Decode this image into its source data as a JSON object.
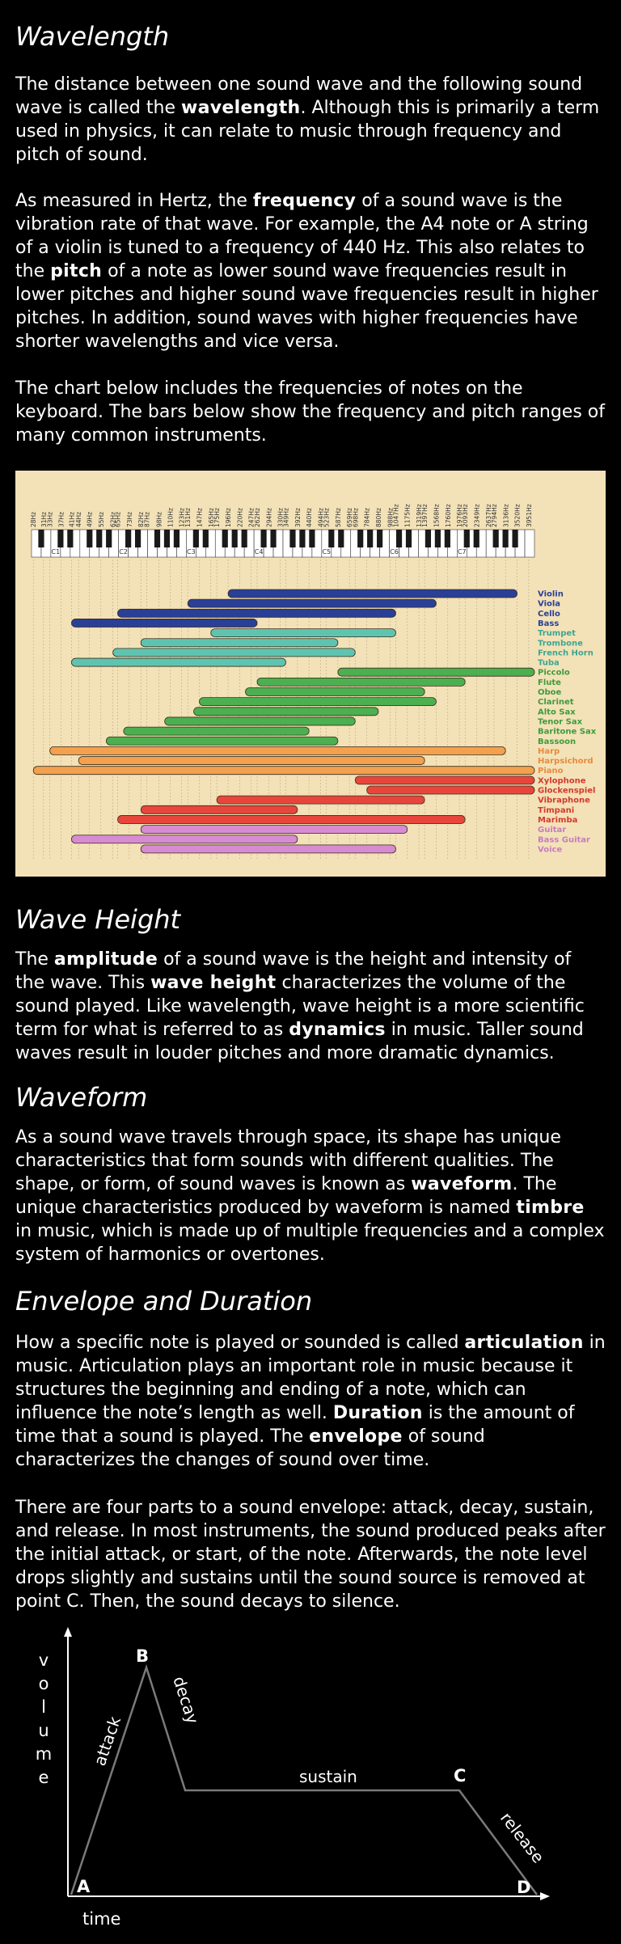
{
  "sections": {
    "wavelength": {
      "title": "Wavelength",
      "p1": [
        {
          "t": "The distance between one sound wave and the following sound wave is called the "
        },
        {
          "t": "wavelength",
          "b": true
        },
        {
          "t": ". Although this is primarily a term used in physics, it can relate to music through frequency and pitch of sound."
        }
      ],
      "p2": [
        {
          "t": "As measured in Hertz, the "
        },
        {
          "t": "frequency",
          "b": true
        },
        {
          "t": " of a sound wave is the vibration rate of that wave. For example, the A4 note or A string of a violin is tuned to a frequency of 440 Hz. This also relates to the "
        },
        {
          "t": "pitch",
          "b": true
        },
        {
          "t": " of a note as lower sound wave frequencies result in lower pitches and higher sound wave frequencies result in higher pitches. In addition, sound waves with higher frequencies have shorter wavelengths and vice versa."
        }
      ],
      "p3": [
        {
          "t": "The chart below includes the frequencies of notes on the keyboard. The bars below show the frequency and pitch ranges of many common instruments."
        }
      ]
    },
    "wave_height": {
      "title": "Wave Height",
      "p1": [
        {
          "t": "The "
        },
        {
          "t": "amplitude",
          "b": true
        },
        {
          "t": " of a sound wave is the height and intensity of the wave. This "
        },
        {
          "t": "wave height",
          "b": true
        },
        {
          "t": " characterizes the volume of the sound played. Like wavelength, wave height is a more scientific term for what is referred to as "
        },
        {
          "t": "dynamics",
          "b": true
        },
        {
          "t": " in music. Taller sound waves result in louder pitches and more dramatic dynamics."
        }
      ]
    },
    "waveform": {
      "title": "Waveform",
      "p1": [
        {
          "t": "As a sound wave travels through space, its shape has unique characteristics that form sounds with different qualities. The shape, or form, of sound waves is known as "
        },
        {
          "t": "waveform",
          "b": true
        },
        {
          "t": ". The unique characteristics produced by waveform is named "
        },
        {
          "t": "timbre",
          "b": true
        },
        {
          "t": " in music, which is made up of multiple frequencies and a complex system of harmonics or overtones."
        }
      ]
    },
    "envelope": {
      "title": "Envelope and Duration",
      "p1": [
        {
          "t": "How a specific note is played or sounded is called "
        },
        {
          "t": "articulation",
          "b": true
        },
        {
          "t": " in music. Articulation plays an important role in music because it structures the beginning and ending of a note, which can influence the note’s length as well. "
        },
        {
          "t": "Duration",
          "b": true
        },
        {
          "t": " is the amount of time that a sound is played. The "
        },
        {
          "t": "envelope",
          "b": true
        },
        {
          "t": " of sound characterizes the changes of sound over time."
        }
      ],
      "p2": [
        {
          "t": "There are four parts to a sound envelope: attack, decay, sustain, and release. In most instruments, the sound produced peaks after the initial attack, or start, of the note. Afterwards, the note level drops slightly and sustains until the sound source is removed at point C. Then, the sound decays to silence."
        }
      ]
    }
  },
  "chart_data": {
    "type": "bar",
    "frequency_labels": [
      "28Hz",
      "31Hz",
      "33Hz",
      "37Hz",
      "41Hz",
      "44Hz",
      "49Hz",
      "55Hz",
      "62Hz",
      "65Hz",
      "73Hz",
      "82Hz",
      "87Hz",
      "98Hz",
      "110Hz",
      "123Hz",
      "131Hz",
      "147Hz",
      "165Hz",
      "175Hz",
      "196Hz",
      "220Hz",
      "247Hz",
      "262Hz",
      "294Hz",
      "330Hz",
      "349Hz",
      "392Hz",
      "440Hz",
      "494Hz",
      "523Hz",
      "587Hz",
      "659Hz",
      "698Hz",
      "784Hz",
      "880Hz",
      "988Hz",
      "1047Hz",
      "1175Hz",
      "1319Hz",
      "1397Hz",
      "1568Hz",
      "1760Hz",
      "1976Hz",
      "2093Hz",
      "2349Hz",
      "2637Hz",
      "2794Hz",
      "3136Hz",
      "3520Hz",
      "3951Hz"
    ],
    "octave_labels": [
      "C1",
      "C2",
      "C3",
      "C4",
      "C5",
      "C6",
      "C7"
    ],
    "instruments": [
      {
        "name": "Violin",
        "group": "strings",
        "color": "#2a3f96",
        "range": [
          196,
          3520
        ]
      },
      {
        "name": "Viola",
        "group": "strings",
        "color": "#2a3f96",
        "range": [
          131,
          1568
        ]
      },
      {
        "name": "Cello",
        "group": "strings",
        "color": "#2a3f96",
        "range": [
          65,
          1047
        ]
      },
      {
        "name": "Bass",
        "group": "strings",
        "color": "#2a3f96",
        "range": [
          41,
          262
        ]
      },
      {
        "name": "Trumpet",
        "group": "brass",
        "color": "#5ec4b0",
        "range": [
          165,
          1047
        ]
      },
      {
        "name": "Trombone",
        "group": "brass",
        "color": "#5ec4b0",
        "range": [
          82,
          587
        ]
      },
      {
        "name": "French Horn",
        "group": "brass",
        "color": "#5ec4b0",
        "range": [
          62,
          698
        ]
      },
      {
        "name": "Tuba",
        "group": "brass",
        "color": "#5ec4b0",
        "range": [
          41,
          349
        ]
      },
      {
        "name": "Piccolo",
        "group": "woodwinds",
        "color": "#4caf50",
        "range": [
          587,
          4186
        ]
      },
      {
        "name": "Flute",
        "group": "woodwinds",
        "color": "#4caf50",
        "range": [
          262,
          2093
        ]
      },
      {
        "name": "Oboe",
        "group": "woodwinds",
        "color": "#4caf50",
        "range": [
          233,
          1397
        ]
      },
      {
        "name": "Clarinet",
        "group": "woodwinds",
        "color": "#4caf50",
        "range": [
          147,
          1568
        ]
      },
      {
        "name": "Alto Sax",
        "group": "woodwinds",
        "color": "#4caf50",
        "range": [
          139,
          880
        ]
      },
      {
        "name": "Tenor Sax",
        "group": "woodwinds",
        "color": "#4caf50",
        "range": [
          104,
          698
        ]
      },
      {
        "name": "Baritone Sax",
        "group": "woodwinds",
        "color": "#4caf50",
        "range": [
          69,
          440
        ]
      },
      {
        "name": "Bassoon",
        "group": "woodwinds",
        "color": "#4caf50",
        "range": [
          58,
          587
        ]
      },
      {
        "name": "Harp",
        "group": "keyboard",
        "color": "#f3a04f",
        "range": [
          33,
          3136
        ]
      },
      {
        "name": "Harpsichord",
        "group": "keyboard",
        "color": "#f3a04f",
        "range": [
          44,
          1397
        ]
      },
      {
        "name": "Piano",
        "group": "keyboard",
        "color": "#f3a04f",
        "range": [
          28,
          4186
        ]
      },
      {
        "name": "Xylophone",
        "group": "percussion",
        "color": "#e8463c",
        "range": [
          698,
          4186
        ]
      },
      {
        "name": "Glockenspiel",
        "group": "percussion",
        "color": "#e8463c",
        "range": [
          784,
          4186
        ]
      },
      {
        "name": "Vibraphone",
        "group": "percussion",
        "color": "#e8463c",
        "range": [
          175,
          1397
        ]
      },
      {
        "name": "Timpani",
        "group": "percussion",
        "color": "#e8463c",
        "range": [
          82,
          392
        ]
      },
      {
        "name": "Marimba",
        "group": "percussion",
        "color": "#e8463c",
        "range": [
          65,
          2093
        ]
      },
      {
        "name": "Guitar",
        "group": "voice",
        "color": "#d78bd0",
        "range": [
          82,
          1175
        ]
      },
      {
        "name": "Bass Guitar",
        "group": "voice",
        "color": "#d78bd0",
        "range": [
          41,
          392
        ]
      },
      {
        "name": "Voice",
        "group": "voice",
        "color": "#d78bd0",
        "range": [
          82,
          1047
        ]
      }
    ],
    "label_colors": {
      "strings": "#2a3f96",
      "brass": "#3fa58f",
      "woodwinds": "#3f9a3f",
      "keyboard": "#e88a3c",
      "percussion": "#d23a2f",
      "voice": "#c77cc0"
    },
    "xscale": "log",
    "xlim": [
      27.5,
      4186
    ]
  },
  "envelope_diagram": {
    "ylabel": "volume",
    "xlabel": "time",
    "points": [
      "A",
      "B",
      "C",
      "D"
    ],
    "phases": [
      "attack",
      "decay",
      "sustain",
      "release"
    ],
    "line_color": "#7a7a7a"
  }
}
